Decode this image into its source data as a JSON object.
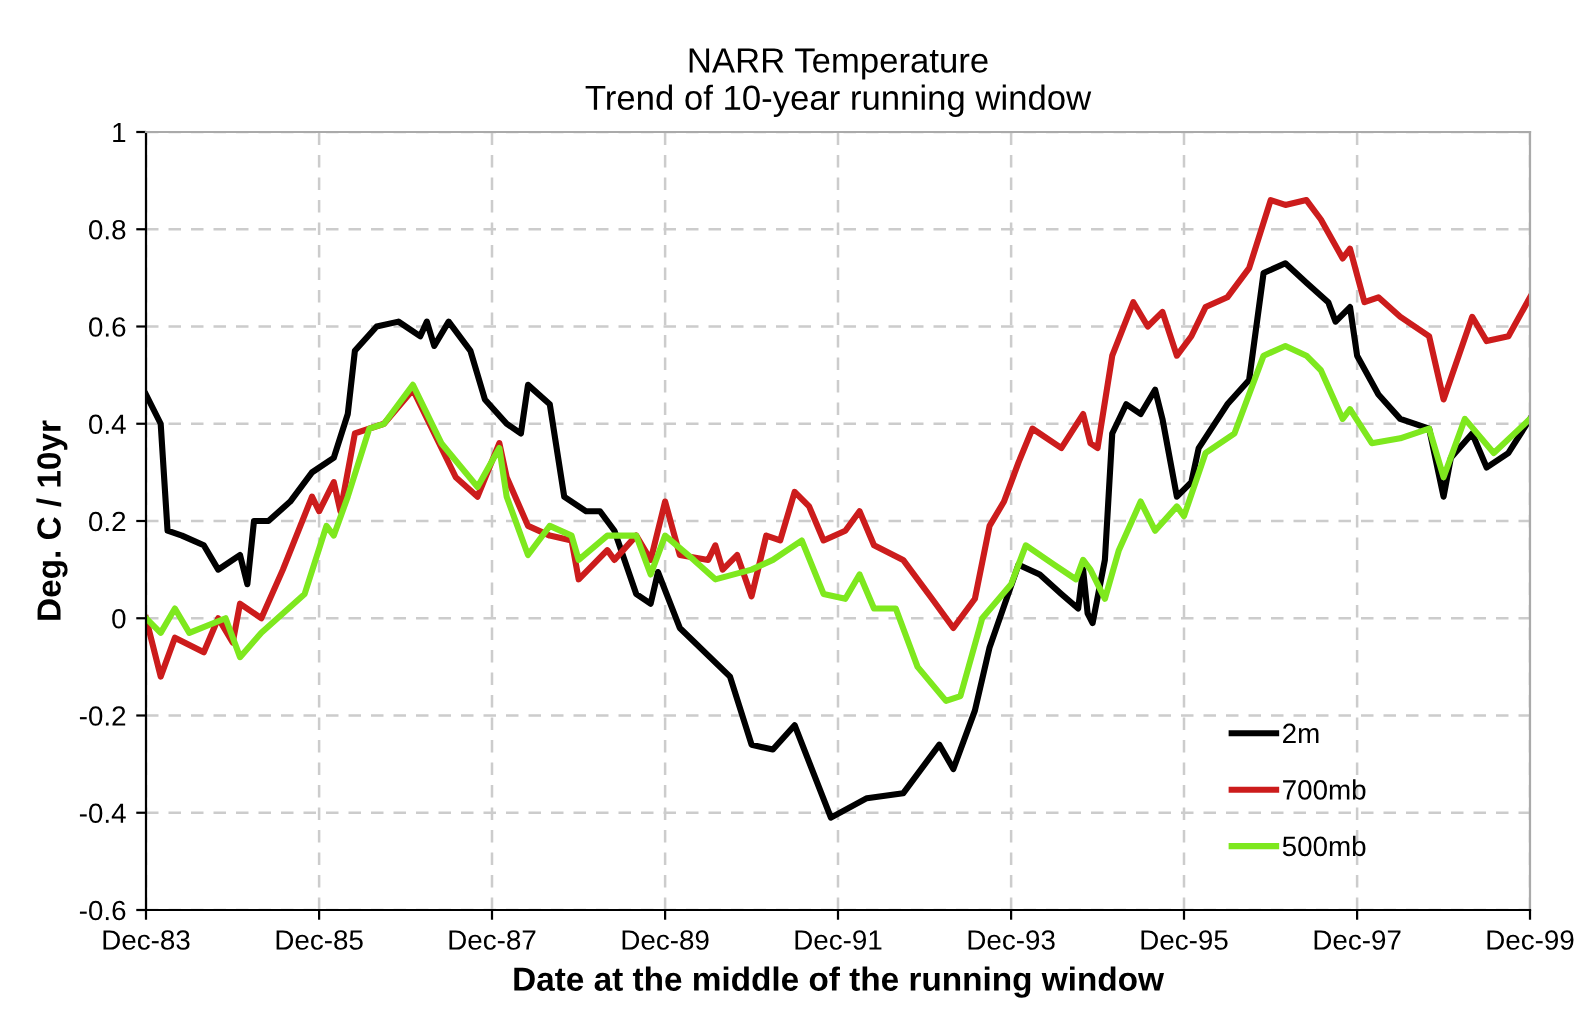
{
  "chart_data": {
    "type": "line",
    "title": "NARR Temperature\nTrend of 10-year running window",
    "xlabel": "Date at the middle of the running window",
    "ylabel": "Deg. C / 10yr",
    "xlim": [
      "1983-12",
      "1999-12"
    ],
    "xticks": [
      {
        "value": "1983-12",
        "label": "Dec-83"
      },
      {
        "value": "1985-12",
        "label": "Dec-85"
      },
      {
        "value": "1987-12",
        "label": "Dec-87"
      },
      {
        "value": "1989-12",
        "label": "Dec-89"
      },
      {
        "value": "1991-12",
        "label": "Dec-91"
      },
      {
        "value": "1993-12",
        "label": "Dec-93"
      },
      {
        "value": "1995-12",
        "label": "Dec-95"
      },
      {
        "value": "1997-12",
        "label": "Dec-97"
      },
      {
        "value": "1999-12",
        "label": "Dec-99"
      }
    ],
    "ylim": [
      -0.6,
      1
    ],
    "yticks": [
      -0.6,
      -0.4,
      -0.2,
      0,
      0.2,
      0.4,
      0.6,
      0.8,
      1
    ],
    "grid": true,
    "legend": "bottom right",
    "marker": "none",
    "line_style": "solid",
    "series": [
      {
        "name": "2m",
        "color": "#000000",
        "x": [
          "1983-12",
          "1984-02",
          "1984-03",
          "1984-05",
          "1984-08",
          "1984-10",
          "1985-01",
          "1985-02",
          "1985-03",
          "1985-05",
          "1985-08",
          "1985-11",
          "1986-02",
          "1986-04",
          "1986-05",
          "1986-08",
          "1986-11",
          "1987-02",
          "1987-03",
          "1987-04",
          "1987-06",
          "1987-09",
          "1987-11",
          "1988-02",
          "1988-04",
          "1988-05",
          "1988-08",
          "1988-10",
          "1989-01",
          "1989-03",
          "1989-05",
          "1989-08",
          "1989-10",
          "1989-11",
          "1990-02",
          "1990-09",
          "1990-12",
          "1991-03",
          "1991-06",
          "1991-11",
          "1992-04",
          "1992-09",
          "1993-02",
          "1993-04",
          "1993-07",
          "1993-09",
          "1994-01",
          "1994-04",
          "1994-07",
          "1994-09-10",
          "1994-10-01",
          "1994-10-20",
          "1994-11-10",
          "1995-01",
          "1995-02",
          "1995-04",
          "1995-06",
          "1995-08",
          "1995-09",
          "1995-11",
          "1996-01",
          "1996-02",
          "1996-06",
          "1996-09",
          "1996-11",
          "1997-02",
          "1997-05",
          "1997-08",
          "1997-09",
          "1997-11",
          "1997-12",
          "1998-03",
          "1998-06",
          "1998-10",
          "1998-12",
          "1999-01",
          "1999-04",
          "1999-06",
          "1999-09",
          "1999-12"
        ],
        "values": [
          0.46,
          0.4,
          0.18,
          0.17,
          0.15,
          0.1,
          0.13,
          0.07,
          0.2,
          0.2,
          0.24,
          0.3,
          0.33,
          0.42,
          0.55,
          0.6,
          0.61,
          0.58,
          0.61,
          0.56,
          0.61,
          0.55,
          0.45,
          0.4,
          0.38,
          0.48,
          0.44,
          0.25,
          0.22,
          0.22,
          0.18,
          0.05,
          0.03,
          0.095,
          -0.02,
          -0.12,
          -0.26,
          -0.27,
          -0.22,
          -0.41,
          -0.37,
          -0.36,
          -0.26,
          -0.31,
          -0.19,
          -0.06,
          0.11,
          0.09,
          0.05,
          0.02,
          0.1,
          0.01,
          -0.01,
          0.12,
          0.38,
          0.44,
          0.42,
          0.47,
          0.41,
          0.25,
          0.28,
          0.35,
          0.44,
          0.49,
          0.71,
          0.73,
          0.69,
          0.65,
          0.61,
          0.64,
          0.54,
          0.46,
          0.41,
          0.39,
          0.25,
          0.33,
          0.38,
          0.31,
          0.34,
          0.41
        ]
      },
      {
        "name": "700mb",
        "color": "#cc1c1c",
        "x": [
          "1983-12",
          "1984-02",
          "1984-04",
          "1984-08",
          "1984-10",
          "1984-12",
          "1985-01",
          "1985-04",
          "1985-07",
          "1985-11",
          "1985-12",
          "1986-02",
          "1986-03",
          "1986-05",
          "1986-09",
          "1987-01",
          "1987-07",
          "1987-10",
          "1988-01",
          "1988-02",
          "1988-05",
          "1988-08",
          "1988-11",
          "1988-12",
          "1989-04",
          "1989-05",
          "1989-08",
          "1989-10",
          "1989-12",
          "1990-02",
          "1990-06",
          "1990-07",
          "1990-08",
          "1990-10",
          "1990-12",
          "1991-02",
          "1991-04",
          "1991-06",
          "1991-08",
          "1991-10",
          "1992-01",
          "1992-03",
          "1992-05",
          "1992-09",
          "1993-01",
          "1993-04",
          "1993-07",
          "1993-09",
          "1993-11",
          "1994-01",
          "1994-03",
          "1994-07",
          "1994-10",
          "1994-11",
          "1994-12",
          "1995-02",
          "1995-05",
          "1995-07",
          "1995-09",
          "1995-11",
          "1996-01",
          "1996-03",
          "1996-06",
          "1996-09",
          "1996-12",
          "1997-02",
          "1997-05",
          "1997-07",
          "1997-10",
          "1997-11",
          "1998-01",
          "1998-03",
          "1998-06",
          "1998-10",
          "1998-12",
          "1999-04",
          "1999-06",
          "1999-09",
          "1999-12"
        ],
        "values": [
          0.0,
          -0.12,
          -0.04,
          -0.07,
          0.0,
          -0.05,
          0.03,
          0.0,
          0.1,
          0.25,
          0.22,
          0.28,
          0.22,
          0.38,
          0.4,
          0.47,
          0.29,
          0.25,
          0.36,
          0.29,
          0.19,
          0.17,
          0.16,
          0.08,
          0.14,
          0.12,
          0.17,
          0.12,
          0.24,
          0.13,
          0.12,
          0.15,
          0.1,
          0.13,
          0.045,
          0.17,
          0.16,
          0.26,
          0.23,
          0.16,
          0.18,
          0.22,
          0.15,
          0.12,
          0.04,
          -0.02,
          0.04,
          0.19,
          0.24,
          0.32,
          0.39,
          0.35,
          0.42,
          0.36,
          0.35,
          0.54,
          0.65,
          0.6,
          0.63,
          0.54,
          0.58,
          0.64,
          0.66,
          0.72,
          0.86,
          0.85,
          0.86,
          0.82,
          0.74,
          0.76,
          0.65,
          0.66,
          0.62,
          0.58,
          0.45,
          0.62,
          0.57,
          0.58,
          0.66
        ]
      },
      {
        "name": "500mb",
        "color": "#7ee81e",
        "x": [
          "1983-12",
          "1984-02",
          "1984-04",
          "1984-06",
          "1984-11",
          "1985-01",
          "1985-04",
          "1985-10",
          "1986-01",
          "1986-02",
          "1986-04",
          "1986-07",
          "1986-09",
          "1987-01",
          "1987-05",
          "1987-10",
          "1988-01",
          "1988-02",
          "1988-05",
          "1988-08",
          "1988-11",
          "1988-12",
          "1989-04",
          "1989-08",
          "1989-10",
          "1989-12",
          "1990-04",
          "1990-07",
          "1990-12",
          "1991-03",
          "1991-07",
          "1991-10",
          "1992-01",
          "1992-03",
          "1992-05",
          "1992-08",
          "1992-11",
          "1993-03",
          "1993-05",
          "1993-08",
          "1993-12",
          "1994-02",
          "1994-06",
          "1994-09",
          "1994-10",
          "1994-11",
          "1995-01",
          "1995-03",
          "1995-06",
          "1995-08",
          "1995-11",
          "1995-12",
          "1996-03",
          "1996-07",
          "1996-11",
          "1997-02",
          "1997-05",
          "1997-07",
          "1997-10",
          "1997-11",
          "1998-02",
          "1998-06",
          "1998-10",
          "1998-12",
          "1999-03",
          "1999-07",
          "1999-12"
        ],
        "values": [
          0.0,
          -0.03,
          0.02,
          -0.03,
          0.0,
          -0.08,
          -0.03,
          0.05,
          0.19,
          0.17,
          0.25,
          0.39,
          0.4,
          0.48,
          0.36,
          0.27,
          0.35,
          0.25,
          0.13,
          0.19,
          0.17,
          0.12,
          0.17,
          0.17,
          0.09,
          0.17,
          0.12,
          0.08,
          0.1,
          0.12,
          0.16,
          0.05,
          0.04,
          0.09,
          0.02,
          0.02,
          -0.1,
          -0.17,
          -0.16,
          0.0,
          0.07,
          0.15,
          0.11,
          0.08,
          0.12,
          0.1,
          0.04,
          0.14,
          0.24,
          0.18,
          0.23,
          0.21,
          0.34,
          0.38,
          0.54,
          0.56,
          0.54,
          0.51,
          0.41,
          0.43,
          0.36,
          0.37,
          0.39,
          0.29,
          0.41,
          0.34,
          0.41
        ]
      }
    ]
  }
}
